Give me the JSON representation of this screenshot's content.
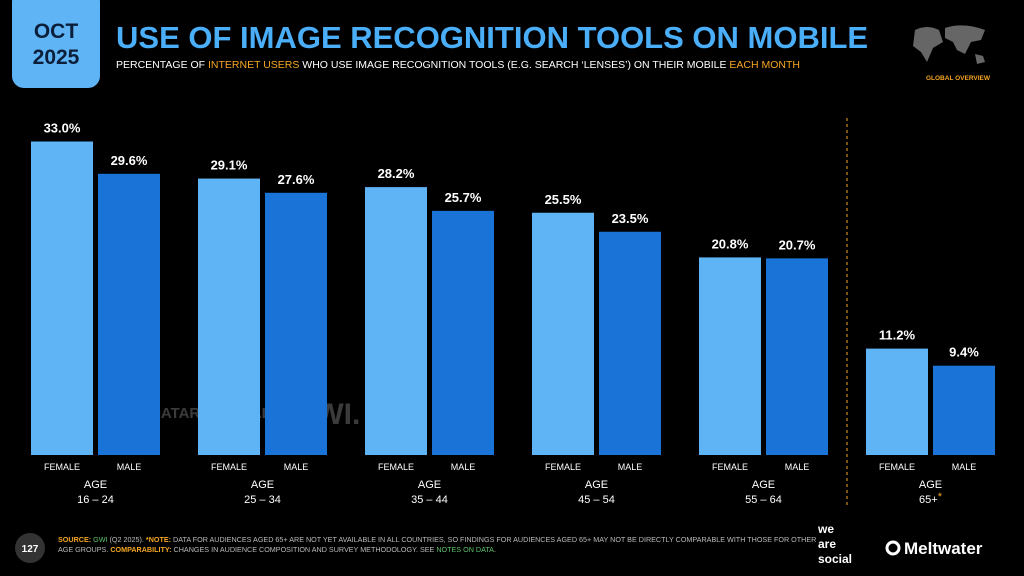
{
  "header": {
    "month": "OCT",
    "year": "2025",
    "region": "GLOBAL OVERVIEW"
  },
  "chart_data": {
    "type": "bar",
    "title": "USE OF IMAGE RECOGNITION TOOLS ON MOBILE",
    "subtitle": [
      "PERCENTAGE OF ",
      "INTERNET USERS",
      " WHO USE IMAGE RECOGNITION TOOLS (E.G. SEARCH ‘LENSES’) ON THEIR MOBILE ",
      "EACH MONTH"
    ],
    "category_prefix": "AGE",
    "categories": [
      "16 – 24",
      "25 – 34",
      "35 – 44",
      "45 – 54",
      "55 – 64",
      "65+"
    ],
    "note_marker": "*",
    "series": [
      {
        "name": "FEMALE",
        "color": "#5fb4f6",
        "values": [
          33.0,
          29.1,
          28.2,
          25.5,
          20.8,
          11.2
        ],
        "value_labels": [
          "33.0%",
          "29.1%",
          "28.2%",
          "25.5%",
          "20.8%",
          "11.2%"
        ]
      },
      {
        "name": "MALE",
        "color": "#1a74d8",
        "values": [
          29.6,
          27.6,
          25.7,
          23.5,
          20.7,
          9.4
        ],
        "value_labels": [
          "29.6%",
          "27.6%",
          "25.7%",
          "23.5%",
          "20.7%",
          "9.4%"
        ]
      }
    ]
  },
  "watermarks": [
    "DATAREPORTAL",
    "GWI."
  ],
  "footer": {
    "page": "127",
    "source": [
      "SOURCE:",
      " GWI",
      " (Q2 2025). ",
      "*NOTE:",
      " DATA FOR AUDIENCES AGED 65+ ARE NOT YET AVAILABLE IN ALL COUNTRIES, SO FINDINGS FOR AUDIENCES AGED 65+ MAY NOT BE DIRECTLY COMPARABLE WITH THOSE FOR OTHER AGE GROUPS. ",
      "COMPARABILITY:",
      " CHANGES IN AUDIENCE COMPOSITION AND SURVEY METHODOLOGY. SEE ",
      "NOTES ON DATA",
      "."
    ],
    "logos": [
      "we",
      "are",
      "social",
      "Meltwater"
    ]
  }
}
